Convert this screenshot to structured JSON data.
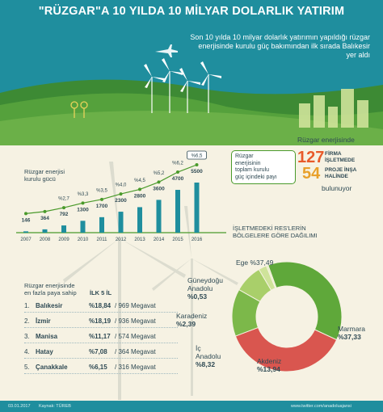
{
  "header": {
    "title": "\"RÜZGAR\"A 10 YILDA 10 MİLYAR DOLARLIK YATIRIM",
    "intro": "Son 10 yılda 10 milyar dolarlık yatırımın yapıldığı rüzgar enerjisinde kurulu güç bakımından ilk sırada Balıkesir yer aldı"
  },
  "chart_data": [
    {
      "type": "bar",
      "title": "Rüzgar enerjisi kurulu gücü",
      "categories": [
        "2007",
        "2008",
        "2009",
        "2010",
        "2011",
        "2012",
        "2013",
        "2014",
        "2015",
        "2016"
      ],
      "series": [
        {
          "name": "",
          "values": [
            146,
            364,
            792,
            1300,
            1700,
            2300,
            2800,
            3600,
            4700,
            5500
          ]
        },
        {
          "name": "Rüzgar enerjisinin toplam kurulu güç içindeki payı",
          "values": [
            null,
            null,
            2.7,
            3.3,
            3.5,
            4.0,
            4.5,
            5.2,
            6.2,
            6.5
          ],
          "labels": [
            "",
            "",
            "%2,7",
            "%3,3",
            "%3,5",
            "%4,0",
            "%4,5",
            "%5,2",
            "%6,2",
            "%6,5"
          ]
        }
      ]
    },
    {
      "type": "pie",
      "title": "İşletmedeki RES'lerin bölgelere göre dağılımı",
      "slices": [
        {
          "name": "Ege",
          "value": 37.49,
          "label": "%37,49",
          "color": "#5fa83a"
        },
        {
          "name": "Marmara",
          "value": 37.33,
          "label": "%37,33",
          "color": "#d9564f"
        },
        {
          "name": "Akdeniz",
          "value": 13.94,
          "label": "%13,94",
          "color": "#7cb84a"
        },
        {
          "name": "İç Anadolu",
          "value": 8.32,
          "label": "%8,32",
          "color": "#a9cf6a"
        },
        {
          "name": "Karadeniz",
          "value": 2.39,
          "label": "%2,39",
          "color": "#cfe39a"
        },
        {
          "name": "Güneydoğu Anadolu",
          "value": 0.53,
          "label": "%0,53",
          "color": "#e7f0c4"
        }
      ]
    }
  ],
  "labels": {
    "chart_title_1": "Rüzgar enerjisi",
    "chart_title_2": "kurulu gücü",
    "callout": [
      "Rüzgar",
      "enerjisinin",
      "toplam kurulu",
      "güç içindeki payı"
    ],
    "pie_title_1": "İŞLETMEDEKİ RES'LERİN",
    "pie_title_2": "BÖLGELERE GÖRE DAĞILIMI"
  },
  "stats": {
    "intro": "Rüzgar enerjisinde",
    "operating_count": "127",
    "operating_label_1": "FİRMA",
    "operating_label_2": "İŞLETMEDE",
    "construction_count": "54",
    "construction_label_1": "PROJE İNŞA",
    "construction_label_2": "HALİNDE",
    "outro": "bulunuyor"
  },
  "top5": {
    "title_1": "Rüzgar enerjisinde",
    "title_2": "en fazla paya sahip",
    "title_3": "İLK 5 İL",
    "rows": [
      {
        "rank": "1.",
        "name": "Balıkesir",
        "pct": "%18,84",
        "mw": " / 969 Megavat"
      },
      {
        "rank": "2.",
        "name": "İzmir",
        "pct": "%18,19",
        "mw": " / 936 Megavat"
      },
      {
        "rank": "3.",
        "name": "Manisa",
        "pct": "%11,17",
        "mw": " / 574 Megavat"
      },
      {
        "rank": "4.",
        "name": "Hatay",
        "pct": "%7,08",
        "mw": " / 364 Megavat"
      },
      {
        "rank": "5.",
        "name": "Çanakkale",
        "pct": "%6,15",
        "mw": " / 316 Megavat"
      }
    ]
  },
  "footer": {
    "date": "03.01.2017",
    "source": "Kaynak: TÜREB",
    "links": "www.twitter.com/anadoluajansi"
  },
  "colors": {
    "teal": "#1f8e9e",
    "hill": "#4f9a3d",
    "orange": "#e85a2a",
    "green": "#4a9a2b"
  }
}
